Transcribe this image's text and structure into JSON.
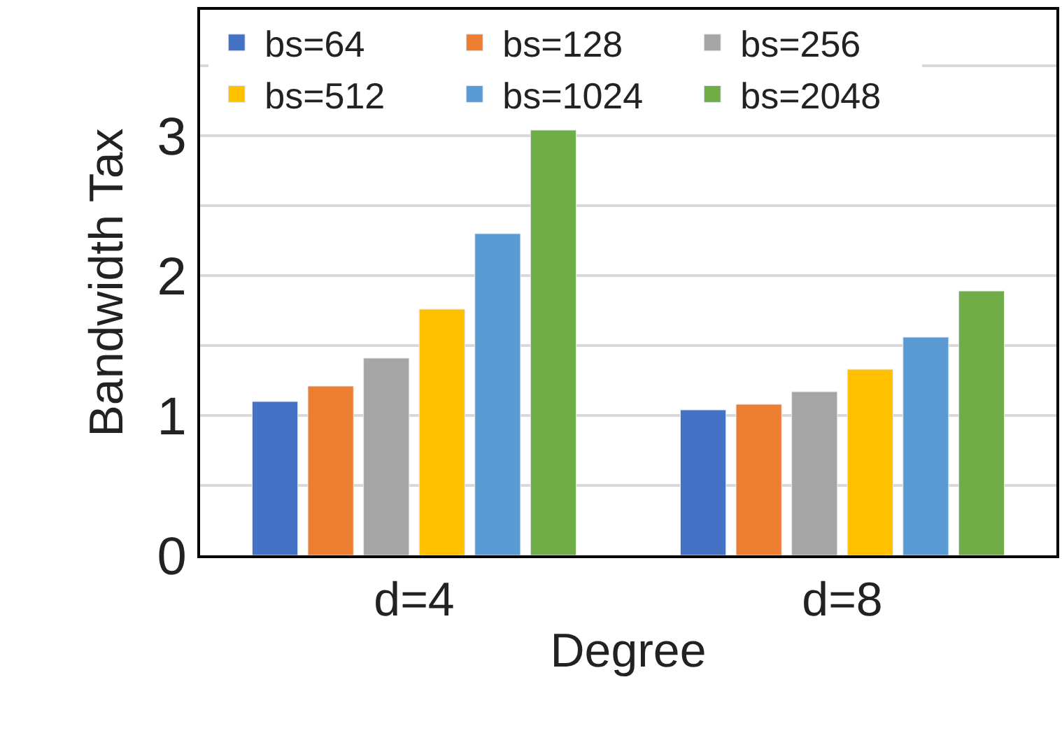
{
  "chart_data": {
    "type": "bar",
    "xlabel": "Degree",
    "ylabel": "Bandwidth Tax",
    "categories": [
      "d=4",
      "d=8"
    ],
    "series": [
      {
        "name": "bs=64",
        "color": "#4472c4",
        "values": [
          1.1,
          1.04
        ]
      },
      {
        "name": "bs=128",
        "color": "#ed7d31",
        "values": [
          1.21,
          1.08
        ]
      },
      {
        "name": "bs=256",
        "color": "#a5a5a5",
        "values": [
          1.41,
          1.17
        ]
      },
      {
        "name": "bs=512",
        "color": "#ffc000",
        "values": [
          1.76,
          1.33
        ]
      },
      {
        "name": "bs=1024",
        "color": "#5b9bd5",
        "values": [
          2.3,
          1.56
        ]
      },
      {
        "name": "bs=2048",
        "color": "#70ad47",
        "values": [
          3.04,
          1.89
        ]
      }
    ],
    "ylim": [
      0,
      3.9
    ],
    "yticks": [
      0,
      {
        "value": 0.5,
        "label": null
      },
      1,
      {
        "value": 1.5,
        "label": null
      },
      2,
      {
        "value": 2.5,
        "label": null
      },
      3,
      {
        "value": 3.5,
        "label": null
      }
    ],
    "grid": "y",
    "legend": "top"
  }
}
